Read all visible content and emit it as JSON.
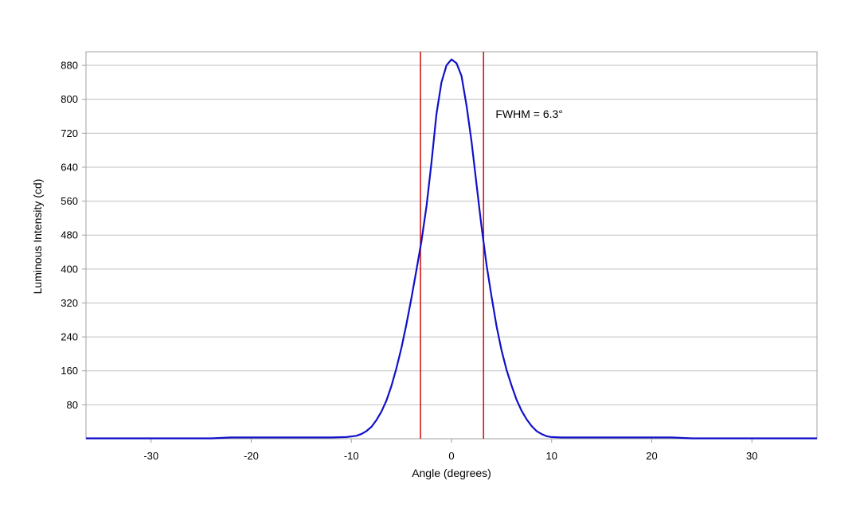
{
  "chart_data": {
    "type": "line",
    "title": "",
    "xlabel": "Angle (degrees)",
    "ylabel": "Luminous Intensity (cd)",
    "xlim": [
      -36.5,
      36.5
    ],
    "ylim": [
      0,
      912
    ],
    "xticks": [
      -30,
      -20,
      -10,
      0,
      10,
      20,
      30
    ],
    "xtick_labels": [
      "-30",
      "-20",
      "-10",
      "0",
      "10",
      "20",
      "30"
    ],
    "yticks": [
      80,
      160,
      240,
      320,
      400,
      480,
      560,
      640,
      720,
      800,
      880
    ],
    "ytick_labels": [
      "80",
      "160",
      "240",
      "320",
      "400",
      "480",
      "560",
      "640",
      "720",
      "800",
      "880"
    ],
    "grid": "horizontal",
    "legend": "none",
    "colors": {
      "series": "#1010c8",
      "markers": "#d01818",
      "grid": "#c0c0c0",
      "frame": "#a0a0a0"
    },
    "series": [
      {
        "values": [
          [
            -36.5,
            1
          ],
          [
            -30,
            1
          ],
          [
            -26,
            1
          ],
          [
            -24,
            1
          ],
          [
            -22,
            3
          ],
          [
            -20,
            3
          ],
          [
            -18,
            3
          ],
          [
            -16,
            3
          ],
          [
            -14,
            3
          ],
          [
            -12,
            3
          ],
          [
            -10.5,
            4
          ],
          [
            -9.5,
            7
          ],
          [
            -9,
            11
          ],
          [
            -8.5,
            18
          ],
          [
            -8,
            28
          ],
          [
            -7.5,
            44
          ],
          [
            -7,
            64
          ],
          [
            -6.5,
            90
          ],
          [
            -6,
            124
          ],
          [
            -5.5,
            166
          ],
          [
            -5,
            214
          ],
          [
            -4.5,
            270
          ],
          [
            -4,
            332
          ],
          [
            -3.5,
            398
          ],
          [
            -3,
            466
          ],
          [
            -2.5,
            548
          ],
          [
            -2,
            650
          ],
          [
            -1.5,
            765
          ],
          [
            -1,
            840
          ],
          [
            -0.5,
            880
          ],
          [
            0,
            894
          ],
          [
            0.5,
            885
          ],
          [
            1,
            855
          ],
          [
            1.5,
            785
          ],
          [
            2,
            700
          ],
          [
            2.5,
            600
          ],
          [
            3,
            500
          ],
          [
            3.5,
            410
          ],
          [
            4,
            335
          ],
          [
            4.5,
            265
          ],
          [
            5,
            208
          ],
          [
            5.5,
            162
          ],
          [
            6,
            125
          ],
          [
            6.5,
            92
          ],
          [
            7,
            66
          ],
          [
            7.5,
            46
          ],
          [
            8,
            30
          ],
          [
            8.5,
            18
          ],
          [
            9,
            11
          ],
          [
            9.5,
            6
          ],
          [
            10,
            4
          ],
          [
            11,
            3
          ],
          [
            14,
            3
          ],
          [
            16,
            3
          ],
          [
            18,
            3
          ],
          [
            20,
            3
          ],
          [
            22,
            3
          ],
          [
            24,
            1
          ],
          [
            30,
            1
          ],
          [
            36.5,
            1
          ]
        ]
      }
    ],
    "markers": [
      -3.1,
      3.2
    ],
    "annotations": [
      {
        "text": "FWHM = 6.3°",
        "x": 4.4,
        "y": 756
      }
    ]
  }
}
